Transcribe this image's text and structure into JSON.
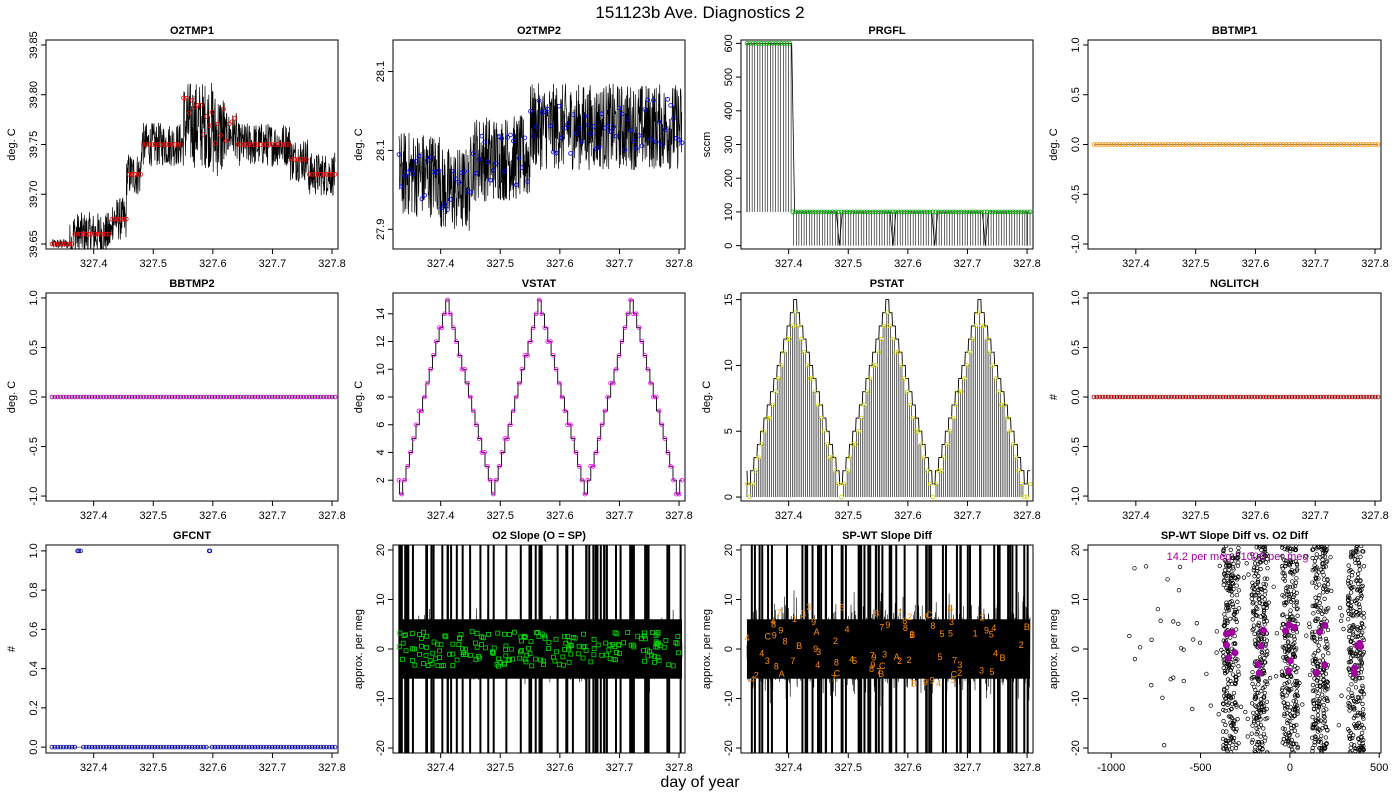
{
  "title": "151123b   Ave. Diagnostics 2",
  "xlabel": "day of year",
  "colors": {
    "red": "#ff0000",
    "blue": "#0000ff",
    "green": "#00aa00",
    "orange": "#ff8c00",
    "purple": "#a000a0",
    "yellow": "#d4d400",
    "magenta": "#ff00ff",
    "darkred": "#b00000",
    "navy": "#0000aa",
    "bright_green": "#00dd00"
  },
  "chart_data": [
    {
      "name": "O2TMP1",
      "type": "line",
      "title": "O2TMP1",
      "ylabel": "deg. C",
      "xlim": [
        327.32,
        327.81
      ],
      "ylim": [
        39.645,
        39.855
      ],
      "yticks": [
        39.65,
        39.7,
        39.75,
        39.8,
        39.85
      ],
      "xticks": [
        327.4,
        327.5,
        327.6,
        327.7,
        327.8
      ],
      "marker_color": "red",
      "description": "stepwise rise from 39.65 to ~39.80 then back to 39.70"
    },
    {
      "name": "O2TMP2",
      "type": "line",
      "title": "O2TMP2",
      "ylabel": "deg. C",
      "xlim": [
        327.32,
        327.81
      ],
      "ylim": [
        27.925,
        28.19
      ],
      "yticks": [
        27.95,
        28.05,
        28.15
      ],
      "xticks": [
        327.4,
        327.5,
        327.6,
        327.7,
        327.8
      ],
      "marker_color": "blue",
      "description": "noisy between 27.95 and 28.12"
    },
    {
      "name": "PRGFL",
      "type": "line",
      "title": "PRGFL",
      "ylabel": "sccm",
      "xlim": [
        327.32,
        327.81
      ],
      "ylim": [
        -10,
        610
      ],
      "yticks": [
        0,
        100,
        200,
        300,
        400,
        500,
        600
      ],
      "xticks": [
        327.4,
        327.5,
        327.6,
        327.7,
        327.8
      ],
      "marker_color": "green",
      "description": "600 until 327.40, then 100 with dips to 0"
    },
    {
      "name": "BBTMP1",
      "type": "line",
      "title": "BBTMP1",
      "ylabel": "deg. C",
      "xlim": [
        327.32,
        327.81
      ],
      "ylim": [
        -1.05,
        1.05
      ],
      "yticks": [
        -1.0,
        -0.5,
        0.0,
        0.5,
        1.0
      ],
      "xticks": [
        327.4,
        327.5,
        327.6,
        327.7,
        327.8
      ],
      "marker_color": "orange",
      "description": "constant 0"
    },
    {
      "name": "BBTMP2",
      "type": "line",
      "title": "BBTMP2",
      "ylabel": "deg. C",
      "xlim": [
        327.32,
        327.81
      ],
      "ylim": [
        -1.05,
        1.05
      ],
      "yticks": [
        -1.0,
        -0.5,
        0.0,
        0.5,
        1.0
      ],
      "xticks": [
        327.4,
        327.5,
        327.6,
        327.7,
        327.8
      ],
      "marker_color": "purple",
      "description": "constant 0"
    },
    {
      "name": "VSTAT",
      "type": "line",
      "title": "VSTAT",
      "ylabel": "deg. C",
      "xlim": [
        327.32,
        327.81
      ],
      "ylim": [
        0.5,
        15.5
      ],
      "yticks": [
        2,
        4,
        6,
        8,
        10,
        12,
        14
      ],
      "xticks": [
        327.4,
        327.5,
        327.6,
        327.7,
        327.8
      ],
      "marker_color": "magenta",
      "description": "triangular staircase 1-15, peaks near 327.415, 327.57, 327.725"
    },
    {
      "name": "PSTAT",
      "type": "line",
      "title": "PSTAT",
      "ylabel": "deg. C",
      "xlim": [
        327.32,
        327.81
      ],
      "ylim": [
        -0.3,
        15.5
      ],
      "yticks": [
        0,
        5,
        10,
        15
      ],
      "xticks": [
        327.4,
        327.5,
        327.6,
        327.7,
        327.8
      ],
      "marker_color": "yellow",
      "description": "triangular 0-15 with vertical drops to 0"
    },
    {
      "name": "NGLITCH",
      "type": "line",
      "title": "NGLITCH",
      "ylabel": "#",
      "xlim": [
        327.32,
        327.81
      ],
      "ylim": [
        -1.05,
        1.05
      ],
      "yticks": [
        -1.0,
        -0.5,
        0.0,
        0.5,
        1.0
      ],
      "xticks": [
        327.4,
        327.5,
        327.6,
        327.7,
        327.8
      ],
      "marker_color": "darkred",
      "description": "constant 0"
    },
    {
      "name": "GFCNT",
      "type": "scatter",
      "title": "GFCNT",
      "ylabel": "#",
      "xlim": [
        327.32,
        327.81
      ],
      "ylim": [
        -0.03,
        1.03
      ],
      "yticks": [
        0.0,
        0.2,
        0.4,
        0.6,
        0.8,
        1.0
      ],
      "xticks": [
        327.4,
        327.5,
        327.6,
        327.7,
        327.8
      ],
      "marker_color": "navy",
      "description": "0 everywhere except 1 at 327.375 and 327.595"
    },
    {
      "name": "O2 Slope",
      "type": "line",
      "title": "O2 Slope (O = SP)",
      "ylabel": "approx. per meg",
      "xlim": [
        327.32,
        327.81
      ],
      "ylim": [
        -21,
        21
      ],
      "yticks": [
        -20,
        -10,
        0,
        10,
        20
      ],
      "xticks": [
        327.4,
        327.5,
        327.6,
        327.7,
        327.8
      ],
      "marker_color": "bright_green",
      "description": "dense noise, markers near 0"
    },
    {
      "name": "SP-WT Slope Diff",
      "type": "line",
      "title": "SP-WT Slope Diff",
      "ylabel": "approx. per meg",
      "xlim": [
        327.32,
        327.81
      ],
      "ylim": [
        -21,
        21
      ],
      "yticks": [
        -20,
        -10,
        0,
        10,
        20
      ],
      "xticks": [
        327.4,
        327.5,
        327.6,
        327.7,
        327.8
      ],
      "marker_color": "orange",
      "labels": [
        "3",
        "4",
        "7",
        "8",
        "B",
        "A",
        "9",
        "1",
        "2",
        "C",
        "5"
      ],
      "description": "dense noise with orange tank labels"
    },
    {
      "name": "SP-WT Slope Diff vs. O2 Diff",
      "type": "scatter",
      "title": "SP-WT Slope Diff vs. O2 Diff",
      "ylabel": "approx. per meg",
      "xlim": [
        -1130,
        510
      ],
      "ylim": [
        -21,
        21
      ],
      "yticks": [
        -20,
        -10,
        0,
        10,
        20
      ],
      "xticks": [
        -1000,
        -500,
        0,
        500
      ],
      "marker_color": "purple",
      "annotation": "14.2 per meg / 1000 per meg",
      "description": "vertical clusters at O2 diff -330,-170,0,170,370"
    }
  ]
}
